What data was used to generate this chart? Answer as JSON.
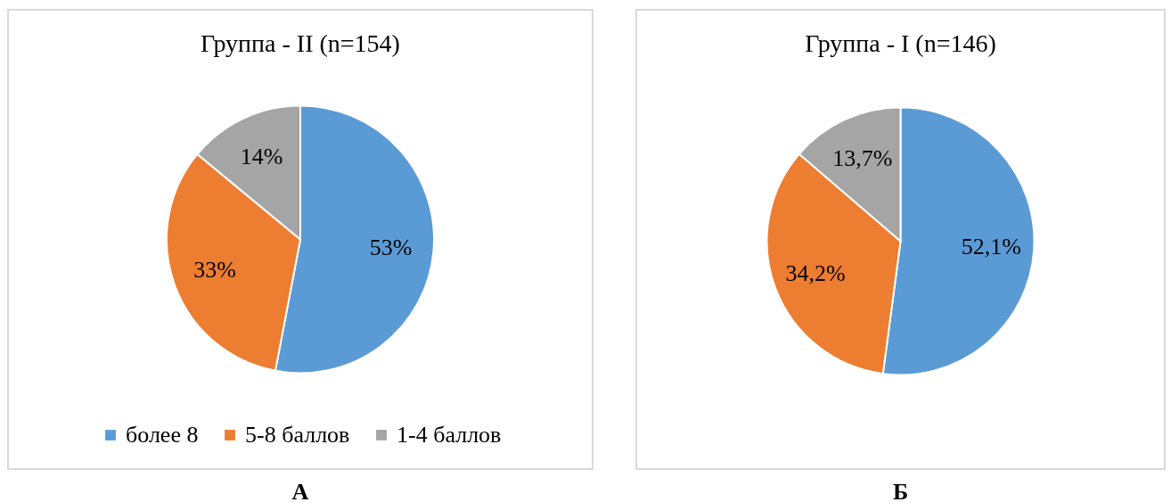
{
  "chart_data": [
    {
      "type": "pie",
      "title": "Группа - II (n=154)",
      "categories": [
        "более 8",
        "5-8 баллов",
        "1-4 баллов"
      ],
      "values": [
        53,
        33,
        14
      ],
      "value_labels": [
        "53%",
        "33%",
        "14%"
      ],
      "colors": [
        "#5b9bd5",
        "#ed7d31",
        "#a5a5a5"
      ],
      "legend": "bottom",
      "annotations": [
        "А"
      ]
    },
    {
      "type": "pie",
      "title": "Группа - I (n=146)",
      "categories": [
        null,
        null,
        null
      ],
      "values": [
        52.1,
        34.2,
        13.7
      ],
      "value_labels": [
        "52,1%",
        "34,2%",
        "13,7%"
      ],
      "colors": [
        "#5b9bd5",
        "#ed7d31",
        "#a5a5a5"
      ],
      "annotations": [
        "Б"
      ]
    }
  ]
}
